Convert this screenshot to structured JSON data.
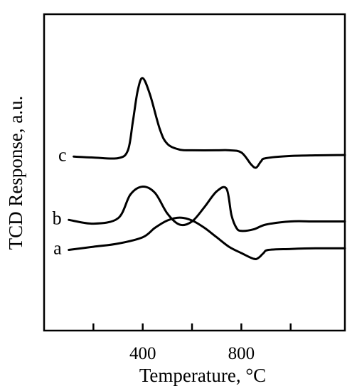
{
  "chart_data": {
    "type": "line",
    "xlabel": "Temperature, °C",
    "ylabel": "TCD Response, a.u.",
    "xlim": [
      0,
      1220
    ],
    "ylim": [
      0,
      100
    ],
    "x_tick_values": [
      200,
      400,
      600,
      800,
      1000
    ],
    "x_tick_labels": [
      "",
      "400",
      "",
      "800",
      ""
    ],
    "grid": false,
    "legend": "none",
    "series": [
      {
        "name": "a",
        "x": [
          100,
          200,
          300,
          400,
          450,
          500,
          550,
          600,
          650,
          700,
          750,
          800,
          850,
          870,
          890,
          910,
          1000,
          1100,
          1220
        ],
        "y": [
          25.5,
          26.5,
          27.5,
          29.5,
          32.5,
          34.8,
          35.7,
          34.8,
          32.5,
          29.5,
          26.5,
          24.5,
          22.7,
          23.0,
          24.5,
          25.5,
          25.8,
          26.0,
          26.0
        ]
      },
      {
        "name": "b",
        "x": [
          100,
          200,
          300,
          350,
          400,
          450,
          500,
          550,
          600,
          650,
          700,
          740,
          760,
          780,
          800,
          850,
          900,
          1000,
          1100,
          1220
        ],
        "y": [
          35.0,
          33.8,
          35.5,
          43.0,
          45.5,
          43.5,
          37.0,
          33.5,
          34.5,
          39.0,
          44.0,
          44.8,
          36.5,
          32.5,
          31.5,
          32.0,
          33.5,
          34.5,
          34.5,
          34.5
        ]
      },
      {
        "name": "c",
        "x": [
          120,
          200,
          300,
          340,
          360,
          380,
          400,
          430,
          470,
          500,
          550,
          600,
          700,
          750,
          800,
          840,
          860,
          880,
          900,
          1000,
          1100,
          1220
        ],
        "y": [
          55.0,
          54.7,
          54.5,
          57.0,
          66.0,
          76.0,
          79.8,
          74.5,
          63.5,
          59.0,
          57.2,
          57.0,
          57.0,
          57.0,
          56.3,
          52.5,
          51.5,
          53.5,
          54.5,
          55.2,
          55.4,
          55.5
        ]
      }
    ]
  }
}
